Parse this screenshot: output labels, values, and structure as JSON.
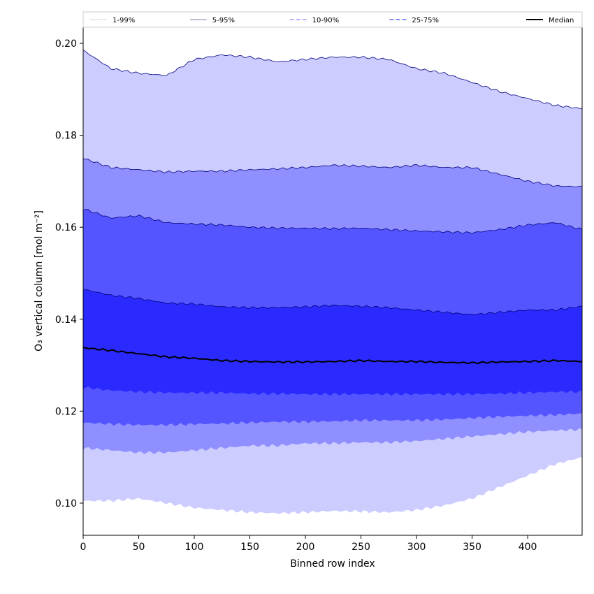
{
  "chart_data": {
    "type": "area",
    "xlabel": "Binned row index",
    "ylabel": "O₃ vertical column [mol m⁻²]",
    "xlim": [
      0,
      449
    ],
    "ylim": [
      0.093,
      0.2035
    ],
    "xticks": [
      0,
      50,
      100,
      150,
      200,
      250,
      300,
      350,
      400
    ],
    "yticks": [
      0.1,
      0.12,
      0.14,
      0.16,
      0.18,
      0.2
    ],
    "ytick_labels": [
      "0.10",
      "0.12",
      "0.14",
      "0.16",
      "0.18",
      "0.20"
    ],
    "grid": false,
    "legend_position": "top",
    "x": [
      0,
      25,
      50,
      75,
      100,
      125,
      150,
      175,
      200,
      225,
      250,
      275,
      300,
      325,
      350,
      375,
      400,
      425,
      449
    ],
    "bands": [
      {
        "name": "1-99%",
        "color": "#ccccff",
        "line_style": "solid",
        "lower": [
          0.1005,
          0.1005,
          0.101,
          0.1,
          0.099,
          0.0985,
          0.098,
          0.0978,
          0.098,
          0.0983,
          0.0982,
          0.098,
          0.0985,
          0.0995,
          0.101,
          0.1035,
          0.106,
          0.1085,
          0.11
        ],
        "upper": [
          0.1985,
          0.1945,
          0.1935,
          0.193,
          0.1965,
          0.1975,
          0.197,
          0.196,
          0.1965,
          0.197,
          0.197,
          0.1965,
          0.1945,
          0.1935,
          0.1915,
          0.1895,
          0.188,
          0.1865,
          0.1858
        ]
      },
      {
        "name": "5-95%",
        "color": "#8f8fff",
        "line_style": "solid",
        "lower": [
          0.112,
          0.1115,
          0.111,
          0.111,
          0.1115,
          0.112,
          0.1125,
          0.1125,
          0.113,
          0.113,
          0.1132,
          0.1132,
          0.1135,
          0.114,
          0.1145,
          0.115,
          0.1155,
          0.1158,
          0.116
        ],
        "upper": [
          0.175,
          0.173,
          0.1725,
          0.172,
          0.1722,
          0.1722,
          0.1725,
          0.1727,
          0.173,
          0.1735,
          0.1733,
          0.173,
          0.1735,
          0.173,
          0.173,
          0.1715,
          0.17,
          0.169,
          0.1688
        ]
      },
      {
        "name": "10-90%",
        "color": "#5555ff",
        "line_style": "solid",
        "lower": [
          0.1175,
          0.1172,
          0.117,
          0.117,
          0.1172,
          0.1173,
          0.1175,
          0.1177,
          0.1177,
          0.1178,
          0.118,
          0.118,
          0.118,
          0.1182,
          0.1185,
          0.1188,
          0.119,
          0.1192,
          0.1195
        ],
        "upper": [
          0.164,
          0.162,
          0.1625,
          0.161,
          0.1607,
          0.1605,
          0.16,
          0.1598,
          0.1598,
          0.1597,
          0.1598,
          0.1595,
          0.1592,
          0.159,
          0.1588,
          0.1595,
          0.1605,
          0.161,
          0.1595
        ]
      },
      {
        "name": "25-75%",
        "color": "#2a2aff",
        "line_style": "solid",
        "lower": [
          0.1252,
          0.1245,
          0.1242,
          0.124,
          0.124,
          0.124,
          0.1238,
          0.1238,
          0.1237,
          0.1237,
          0.1237,
          0.1237,
          0.1237,
          0.1237,
          0.1237,
          0.1238,
          0.124,
          0.1242,
          0.1242
        ],
        "upper": [
          0.1465,
          0.1452,
          0.1445,
          0.1435,
          0.1433,
          0.1427,
          0.1425,
          0.1425,
          0.1427,
          0.143,
          0.1428,
          0.1425,
          0.142,
          0.1415,
          0.141,
          0.1415,
          0.142,
          0.142,
          0.1428
        ]
      }
    ],
    "median": {
      "name": "Median",
      "color": "#000000",
      "values": [
        0.1338,
        0.1332,
        0.1325,
        0.1318,
        0.1315,
        0.131,
        0.1308,
        0.1307,
        0.1307,
        0.1308,
        0.131,
        0.1308,
        0.1308,
        0.1306,
        0.1305,
        0.1307,
        0.1308,
        0.131,
        0.1308
      ]
    },
    "legend": [
      {
        "label": "1-99%",
        "color": "#dddddd",
        "dash": ""
      },
      {
        "label": "5-95%",
        "color": "#9999bb",
        "dash": ""
      },
      {
        "label": "10-90%",
        "color": "#8888ff",
        "dash": "6 3"
      },
      {
        "label": "25-75%",
        "color": "#4444ff",
        "dash": "6 3"
      },
      {
        "label": "Median",
        "color": "#000000",
        "dash": ""
      }
    ]
  }
}
